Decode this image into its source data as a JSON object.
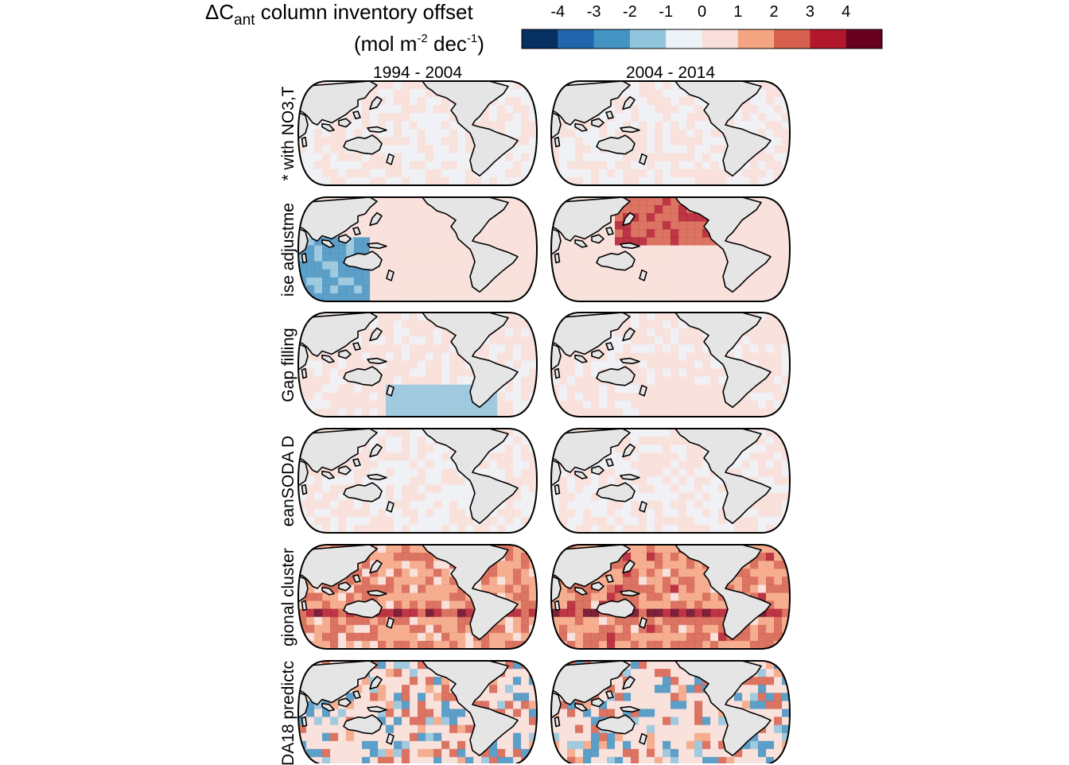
{
  "chart_data": {
    "type": "heatmap",
    "legend": {
      "title_lines": [
        "ΔC",
        "ant",
        " column inventory offset",
        "(mol m",
        "-2",
        " dec",
        "-1",
        ")"
      ],
      "ticks": [
        "-4",
        "-3",
        "-2",
        "-1",
        "0",
        "1",
        "2",
        "3",
        "4"
      ],
      "colors": [
        "#053061",
        "#2166ac",
        "#4393c3",
        "#92c5de",
        "#eef3f9",
        "#f9e0dc",
        "#f4a582",
        "#d6604d",
        "#b2182b",
        "#67001f"
      ],
      "range": [
        -5,
        5
      ],
      "placement": "top"
    },
    "columns": [
      "1994 - 2004",
      "2004 - 2014"
    ],
    "rows": [
      {
        "label": "* with NO3,T",
        "pattern": "near-zero",
        "mean_offset": [
          0.0,
          0.0
        ]
      },
      {
        "label": "ise adjustme",
        "pattern": "mixed",
        "mean_offset": [
          -0.3,
          1.5
        ]
      },
      {
        "label": "Gap filling",
        "pattern": "southern-negative",
        "mean_offset": [
          -0.5,
          0.2
        ]
      },
      {
        "label": "eanSODA D",
        "pattern": "near-zero",
        "mean_offset": [
          0.0,
          0.0
        ]
      },
      {
        "label": "gional cluster",
        "pattern": "positive",
        "mean_offset": [
          1.5,
          1.8
        ]
      },
      {
        "label": "DA18 predictc",
        "pattern": "noisy",
        "mean_offset": [
          0.0,
          0.0
        ]
      }
    ]
  }
}
